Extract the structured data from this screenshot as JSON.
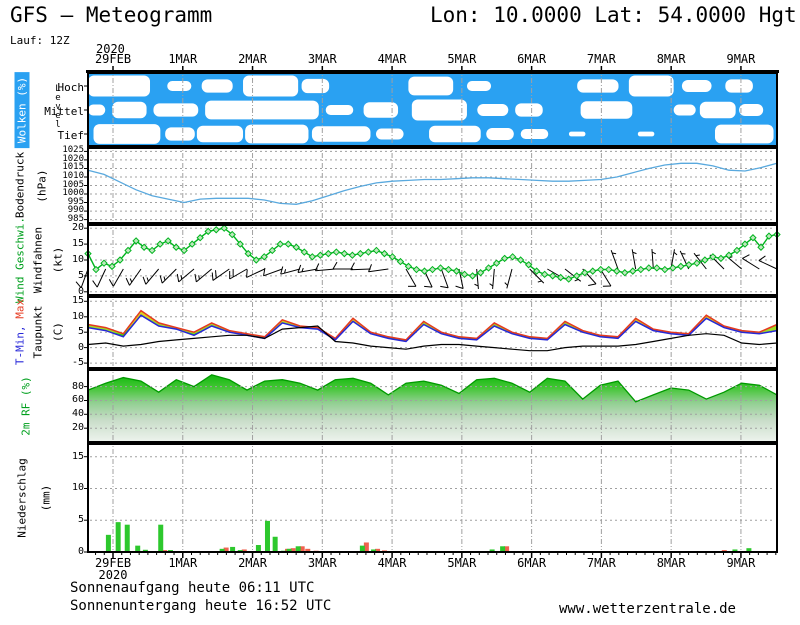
{
  "header": {
    "title": "GFS – Meteogramm",
    "coords": "Lon: 10.0000 Lat: 54.0000 Hgt: 2",
    "run": "Lauf: 12Z"
  },
  "footer": {
    "sunrise": "Sonnenaufgang heute 06:11 UTC",
    "sunset": "Sonnenuntergang heute 16:52 UTC",
    "site": "www.wetterzentrale.de"
  },
  "time_axis": {
    "year": "2020",
    "labels": [
      "29FEB",
      "1MAR",
      "2MAR",
      "3MAR",
      "4MAR",
      "5MAR",
      "6MAR",
      "7MAR",
      "8MAR",
      "9MAR"
    ]
  },
  "colors": {
    "cloud_blue": "#2aa1f2",
    "pressure_line": "#59a9de",
    "wind_green": "#00b41e",
    "temp_max_red": "#e63920",
    "temp_min_blue": "#2727d8",
    "dew_black": "#000000",
    "fill_green": "#2ecc0f",
    "fill_light": "#9fdc28",
    "fill_yellow": "#dcd21e",
    "rh_green": "#00b400",
    "precip_green": "#2dc82d",
    "precip_red": "#f0614f",
    "grid_gray": "#a0a0a0"
  },
  "chart_data": {
    "clouds": {
      "type": "area",
      "label": "Wolken (%)",
      "axis_label": "Level",
      "levels": [
        "Hoch",
        "Mittel",
        "Tief"
      ],
      "patches": {
        "hoch": [
          [
            0,
            0.09,
            0.95
          ],
          [
            0.115,
            0.15,
            0.45
          ],
          [
            0.165,
            0.21,
            0.6
          ],
          [
            0.225,
            0.305,
            0.95
          ],
          [
            0.31,
            0.35,
            0.65
          ],
          [
            0.465,
            0.53,
            0.85
          ],
          [
            0.55,
            0.585,
            0.45
          ],
          [
            0.71,
            0.77,
            0.6
          ],
          [
            0.785,
            0.85,
            0.95
          ],
          [
            0.862,
            0.905,
            0.55
          ],
          [
            0.925,
            0.965,
            0.6
          ]
        ],
        "mittel": [
          [
            0,
            0.025,
            0.5
          ],
          [
            0.035,
            0.085,
            0.75
          ],
          [
            0.095,
            0.16,
            0.6
          ],
          [
            0.17,
            0.335,
            0.85
          ],
          [
            0.345,
            0.385,
            0.45
          ],
          [
            0.4,
            0.45,
            0.7
          ],
          [
            0.47,
            0.55,
            0.95
          ],
          [
            0.565,
            0.61,
            0.55
          ],
          [
            0.62,
            0.66,
            0.6
          ],
          [
            0.715,
            0.79,
            0.8
          ],
          [
            0.85,
            0.882,
            0.5
          ],
          [
            0.888,
            0.94,
            0.75
          ],
          [
            0.945,
            0.98,
            0.55
          ]
        ],
        "tief": [
          [
            0.008,
            0.105,
            0.9
          ],
          [
            0.112,
            0.155,
            0.6
          ],
          [
            0.158,
            0.225,
            0.75
          ],
          [
            0.228,
            0.32,
            0.85
          ],
          [
            0.325,
            0.41,
            0.7
          ],
          [
            0.418,
            0.458,
            0.5
          ],
          [
            0.495,
            0.57,
            0.75
          ],
          [
            0.578,
            0.618,
            0.55
          ],
          [
            0.628,
            0.668,
            0.45
          ],
          [
            0.698,
            0.722,
            0.22
          ],
          [
            0.798,
            0.822,
            0.22
          ],
          [
            0.91,
            0.995,
            0.85
          ]
        ]
      }
    },
    "pressure": {
      "type": "line",
      "label": "Bodendruck",
      "unit": "(hPa)",
      "yticks": [
        1025,
        1020,
        1015,
        1010,
        1005,
        1000,
        995,
        990,
        985
      ],
      "ylim": [
        983,
        1027
      ],
      "values": [
        1014,
        1011.5,
        1007,
        1002.5,
        999,
        997,
        995,
        997,
        997.5,
        997.5,
        997.5,
        996.5,
        994.5,
        994,
        996,
        999,
        1002,
        1004.5,
        1006.5,
        1007.5,
        1008,
        1008.5,
        1008.5,
        1009,
        1009.5,
        1009.5,
        1009,
        1008.5,
        1008,
        1007.5,
        1007.5,
        1008,
        1008.5,
        1010,
        1012.5,
        1015,
        1017,
        1018,
        1018,
        1016.5,
        1014,
        1013.5,
        1015.5,
        1018
      ]
    },
    "wind": {
      "type": "line",
      "label_speed": "Wind Geschwi.",
      "label_barbs": "Windfahnen",
      "unit": "(kt)",
      "yticks": [
        20,
        15,
        10,
        5,
        0
      ],
      "ylim": [
        -1,
        21
      ],
      "values": [
        12,
        7,
        9,
        8,
        10,
        13,
        16,
        14,
        13,
        15,
        16,
        14,
        13,
        15,
        17,
        19,
        19.5,
        20,
        18,
        15,
        12,
        10,
        11,
        13,
        15,
        15,
        14,
        12.5,
        11,
        11.5,
        12,
        12.5,
        12,
        11.5,
        12,
        12.5,
        13,
        12,
        11,
        9.5,
        8,
        7,
        6.5,
        7,
        7.5,
        7,
        6.5,
        5.5,
        5,
        6,
        7.5,
        9,
        10.5,
        11,
        10,
        8.5,
        6.5,
        5.5,
        5,
        4.5,
        4,
        5,
        6,
        6.5,
        7,
        7,
        6.5,
        6,
        6.5,
        7,
        7.5,
        7.5,
        7,
        7.5,
        8,
        8.5,
        9,
        10,
        11,
        10.5,
        11.5,
        13,
        15,
        17,
        14,
        17.5,
        18
      ],
      "barbs": {
        "dirs": [
          200,
          205,
          210,
          215,
          220,
          225,
          230,
          230,
          235,
          240,
          245,
          250,
          255,
          260,
          265,
          270,
          268,
          262,
          150,
          155,
          160,
          168,
          175,
          185,
          195,
          135,
          120,
          128,
          138,
          148,
          340,
          350,
          356,
          10,
          335,
          322,
          315,
          310,
          302,
          295
        ],
        "speeds": [
          12,
          9,
          10,
          16,
          13,
          16,
          13,
          17,
          19,
          18,
          12,
          11,
          15,
          14,
          12,
          11,
          12,
          12,
          12,
          12,
          11,
          9,
          7,
          6,
          7,
          6,
          5,
          7,
          10,
          10,
          6,
          5,
          4,
          6,
          7,
          6,
          7,
          7,
          8,
          10
        ]
      }
    },
    "temp": {
      "type": "line",
      "label_min": "T-Min,",
      "label_max": "Max",
      "label_dew": "Taupunkt",
      "unit": "(C)",
      "yticks": [
        15,
        10,
        5,
        0,
        -5
      ],
      "ylim": [
        -6.6,
        16.4
      ],
      "tmax": [
        7.5,
        6.5,
        4.5,
        12,
        8,
        6.5,
        5,
        8,
        5.5,
        4.5,
        3.5,
        9,
        7,
        6.5,
        3,
        9.5,
        5,
        3.5,
        2.5,
        8.5,
        5,
        3.5,
        3,
        8,
        5,
        3.5,
        3,
        8.5,
        5.5,
        4,
        3.5,
        9.5,
        6,
        5,
        4.5,
        10.5,
        7,
        5.5,
        5,
        7.5
      ],
      "tmin": [
        6.5,
        5.5,
        3.5,
        10.5,
        7,
        6,
        4,
        7,
        5,
        4,
        3,
        8,
        6.5,
        6,
        2.5,
        8.5,
        4.5,
        3,
        2,
        7.5,
        4.5,
        3,
        2.5,
        7,
        4.5,
        3,
        2.5,
        7.5,
        5,
        3.5,
        3,
        8.5,
        5.5,
        4.5,
        4,
        9.5,
        6.5,
        5,
        4.5,
        5.5
      ],
      "dew": [
        1,
        1.5,
        0.5,
        1,
        2,
        2.5,
        3,
        3.5,
        4,
        4,
        3,
        6,
        6.5,
        7,
        2,
        1.5,
        0.5,
        0,
        -0.5,
        0.5,
        1,
        1,
        0.5,
        0,
        -0.5,
        -1,
        -1,
        0,
        0.5,
        0.5,
        0.5,
        1,
        2,
        3,
        4,
        4.5,
        4,
        1.5,
        1,
        1.5
      ]
    },
    "rh": {
      "type": "area",
      "label": "2m RF (%)",
      "yticks": [
        80,
        60,
        40,
        20
      ],
      "ylim": [
        0,
        104
      ],
      "values": [
        75,
        85,
        93,
        88,
        72,
        90,
        80,
        97,
        90,
        75,
        88,
        90,
        85,
        75,
        90,
        92,
        85,
        68,
        85,
        88,
        82,
        70,
        90,
        92,
        85,
        72,
        92,
        88,
        62,
        82,
        88,
        58,
        68,
        78,
        75,
        62,
        72,
        85,
        82,
        68
      ]
    },
    "precip": {
      "type": "bar",
      "label": "Niederschlag",
      "unit": "(mm)",
      "yticks": [
        15,
        10,
        5,
        0
      ],
      "ylim": [
        0,
        17
      ],
      "bars": [
        {
          "t": -0.03,
          "g": 2.7,
          "r": 0
        },
        {
          "t": 0.11,
          "g": 4.7,
          "r": 0
        },
        {
          "t": 0.24,
          "g": 4.3,
          "r": 0
        },
        {
          "t": 0.39,
          "g": 1.0,
          "r": 0
        },
        {
          "t": 0.5,
          "g": 0.35,
          "r": 0
        },
        {
          "t": 0.72,
          "g": 4.3,
          "r": 0.3
        },
        {
          "t": 0.86,
          "g": 0.3,
          "r": 0
        },
        {
          "t": 1.22,
          "g": 0,
          "r": 0.15
        },
        {
          "t": 1.48,
          "g": 0,
          "r": 0.15
        },
        {
          "t": 1.6,
          "g": 0.5,
          "r": 0.7
        },
        {
          "t": 1.75,
          "g": 0.8,
          "r": 0
        },
        {
          "t": 1.86,
          "g": 0.3,
          "r": 0.4
        },
        {
          "t": 2.12,
          "g": 1.1,
          "r": 0
        },
        {
          "t": 2.25,
          "g": 4.9,
          "r": 0
        },
        {
          "t": 2.36,
          "g": 2.4,
          "r": 0
        },
        {
          "t": 2.48,
          "g": 0.2,
          "r": 0.5
        },
        {
          "t": 2.56,
          "g": 0.5,
          "r": 0.6
        },
        {
          "t": 2.69,
          "g": 0.9,
          "r": 0.9
        },
        {
          "t": 2.77,
          "g": 0,
          "r": 0.5
        },
        {
          "t": 2.89,
          "g": 0,
          "r": 0.2
        },
        {
          "t": 3.61,
          "g": 1.0,
          "r": 1.5
        },
        {
          "t": 3.77,
          "g": 0.4,
          "r": 0.5
        },
        {
          "t": 3.87,
          "g": 0,
          "r": 0.25
        },
        {
          "t": 5.47,
          "g": 0.4,
          "r": 0
        },
        {
          "t": 5.62,
          "g": 0.9,
          "r": 0.9
        },
        {
          "t": 7.62,
          "g": 0,
          "r": 0.15
        },
        {
          "t": 8.74,
          "g": 0,
          "r": 0.3
        },
        {
          "t": 8.95,
          "g": 0.4,
          "r": 0
        },
        {
          "t": 9.15,
          "g": 0.6,
          "r": 0
        }
      ]
    }
  }
}
